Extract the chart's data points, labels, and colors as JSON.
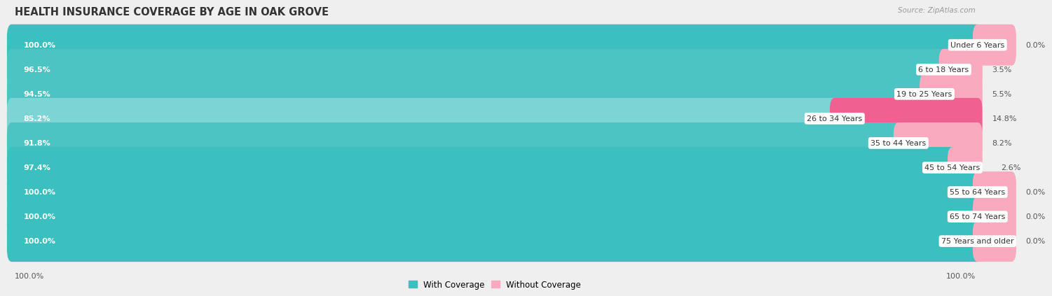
{
  "title": "HEALTH INSURANCE COVERAGE BY AGE IN OAK GROVE",
  "source": "Source: ZipAtlas.com",
  "categories": [
    "Under 6 Years",
    "6 to 18 Years",
    "19 to 25 Years",
    "26 to 34 Years",
    "35 to 44 Years",
    "45 to 54 Years",
    "55 to 64 Years",
    "65 to 74 Years",
    "75 Years and older"
  ],
  "with_coverage": [
    100.0,
    96.5,
    94.5,
    85.2,
    91.8,
    97.4,
    100.0,
    100.0,
    100.0
  ],
  "without_coverage": [
    0.0,
    3.5,
    5.5,
    14.8,
    8.2,
    2.6,
    0.0,
    0.0,
    0.0
  ],
  "color_with": "#3BBFBF",
  "color_with_light": "#7DD4D4",
  "color_without_dark": "#F06090",
  "color_without_light": "#F9AABF",
  "bg_color": "#efefef",
  "bar_bg_color": "#ffffff",
  "title_fontsize": 10.5,
  "bar_label_fontsize": 8.0,
  "cat_label_fontsize": 8.0,
  "pct_label_fontsize": 8.0,
  "legend_fontsize": 8.5,
  "tick_fontsize": 8.0,
  "x_left_label": "100.0%",
  "x_right_label": "100.0%"
}
